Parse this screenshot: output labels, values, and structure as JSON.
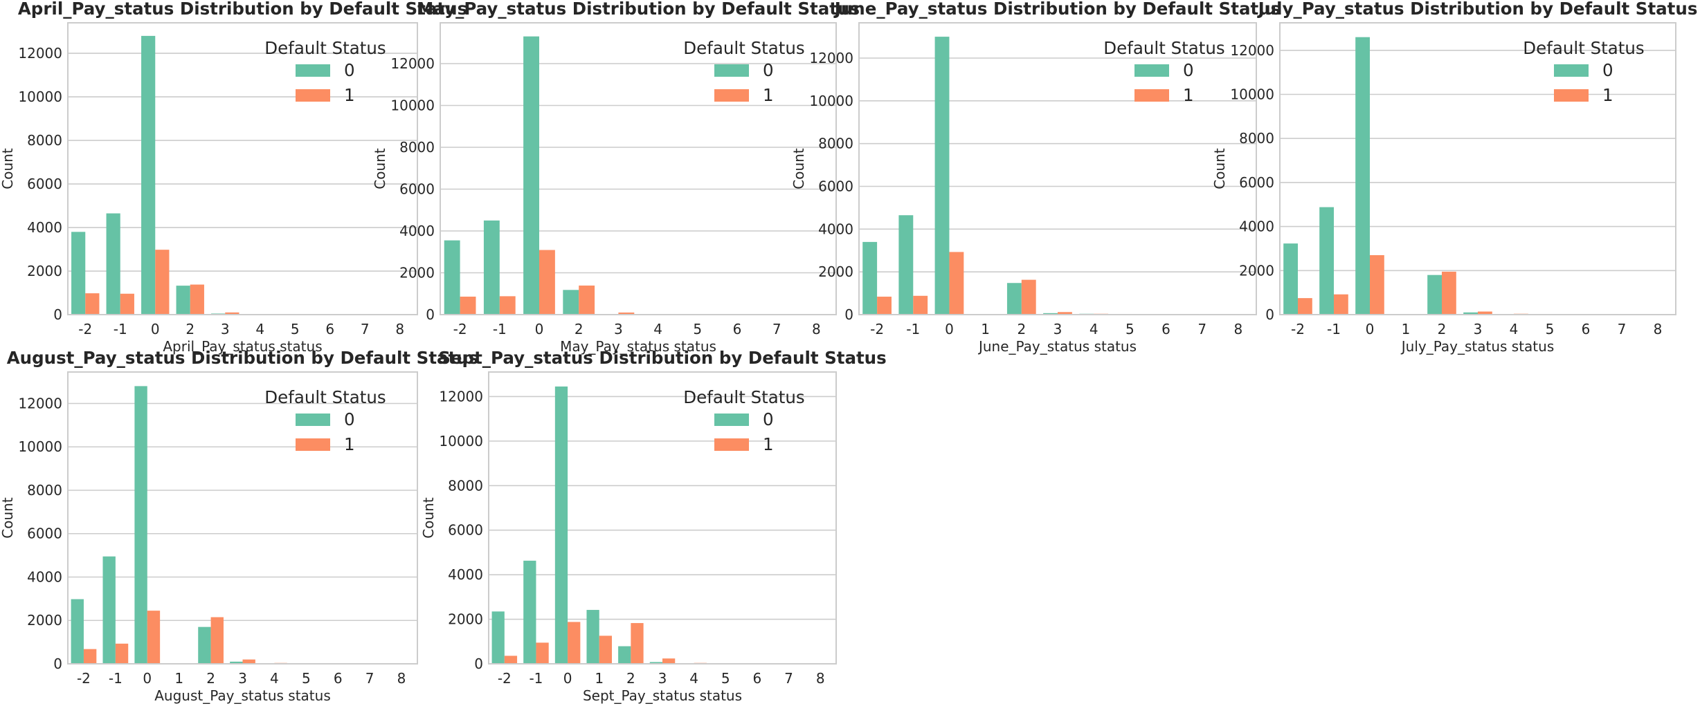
{
  "colors": {
    "series0": "#66c2a5",
    "series1": "#fc8d62",
    "grid": "#cccccc",
    "axis": "#cccccc",
    "text": "#262626"
  },
  "chart_data": [
    {
      "type": "bar",
      "title": "April_Pay_status Distribution by Default Status",
      "xlabel": "April_Pay_status status",
      "ylabel": "Count",
      "categories": [
        "-2",
        "-1",
        "0",
        "2",
        "3",
        "4",
        "5",
        "6",
        "7",
        "8"
      ],
      "series": [
        {
          "name": "0",
          "values": [
            3800,
            4650,
            12800,
            1330,
            50,
            30,
            10,
            5,
            1,
            1
          ]
        },
        {
          "name": "1",
          "values": [
            980,
            960,
            2980,
            1380,
            100,
            20,
            10,
            5,
            1,
            1
          ]
        }
      ],
      "ylim": [
        0,
        13400
      ],
      "yticks": [
        0,
        2000,
        4000,
        6000,
        8000,
        10000,
        12000
      ],
      "legend": {
        "title": "Default Status",
        "placement": "top-right"
      },
      "grid": "y"
    },
    {
      "type": "bar",
      "title": "May_Pay_status Distribution by Default Status",
      "xlabel": "May_Pay_status status",
      "ylabel": "Count",
      "categories": [
        "-2",
        "-1",
        "0",
        "2",
        "3",
        "4",
        "5",
        "6",
        "7",
        "8"
      ],
      "series": [
        {
          "name": "0",
          "values": [
            3550,
            4500,
            13300,
            1180,
            30,
            20,
            10,
            5,
            10,
            1
          ]
        },
        {
          "name": "1",
          "values": [
            860,
            880,
            3090,
            1390,
            100,
            15,
            10,
            5,
            10,
            1
          ]
        }
      ],
      "ylim": [
        0,
        13950
      ],
      "yticks": [
        0,
        2000,
        4000,
        6000,
        8000,
        10000,
        12000
      ],
      "legend": {
        "title": "Default Status",
        "placement": "top-right"
      },
      "grid": "y"
    },
    {
      "type": "bar",
      "title": "June_Pay_status Distribution by Default Status",
      "xlabel": "June_Pay_status status",
      "ylabel": "Count",
      "categories": [
        "-2",
        "-1",
        "0",
        "1",
        "2",
        "3",
        "4",
        "5",
        "6",
        "7",
        "8"
      ],
      "series": [
        {
          "name": "0",
          "values": [
            3400,
            4650,
            13000,
            2,
            1480,
            70,
            40,
            20,
            10,
            10,
            1
          ]
        },
        {
          "name": "1",
          "values": [
            840,
            880,
            2930,
            2,
            1630,
            120,
            40,
            15,
            10,
            10,
            1
          ]
        }
      ],
      "ylim": [
        0,
        13650
      ],
      "yticks": [
        0,
        2000,
        4000,
        6000,
        8000,
        10000,
        12000
      ],
      "legend": {
        "title": "Default Status",
        "placement": "top-right"
      },
      "grid": "y"
    },
    {
      "type": "bar",
      "title": "July_Pay_status Distribution by Default Status",
      "xlabel": "July_Pay_status status",
      "ylabel": "Count",
      "categories": [
        "-2",
        "-1",
        "0",
        "1",
        "2",
        "3",
        "4",
        "5",
        "6",
        "7",
        "8"
      ],
      "series": [
        {
          "name": "0",
          "values": [
            3230,
            4880,
            12600,
            1,
            1800,
            100,
            30,
            15,
            10,
            10,
            1
          ]
        },
        {
          "name": "1",
          "values": [
            750,
            920,
            2700,
            1,
            1950,
            140,
            40,
            15,
            10,
            10,
            1
          ]
        }
      ],
      "ylim": [
        0,
        13250
      ],
      "yticks": [
        0,
        2000,
        4000,
        6000,
        8000,
        10000,
        12000
      ],
      "legend": {
        "title": "Default Status",
        "placement": "top-right"
      },
      "grid": "y"
    },
    {
      "type": "bar",
      "title": "August_Pay_status Distribution by Default Status",
      "xlabel": "August_Pay_status status",
      "ylabel": "Count",
      "categories": [
        "-2",
        "-1",
        "0",
        "1",
        "2",
        "3",
        "4",
        "5",
        "6",
        "7",
        "8"
      ],
      "series": [
        {
          "name": "0",
          "values": [
            2980,
            4950,
            12800,
            3,
            1700,
            100,
            30,
            15,
            10,
            10,
            1
          ]
        },
        {
          "name": "1",
          "values": [
            680,
            930,
            2450,
            3,
            2150,
            200,
            40,
            15,
            10,
            10,
            1
          ]
        }
      ],
      "ylim": [
        0,
        13450
      ],
      "yticks": [
        0,
        2000,
        4000,
        6000,
        8000,
        10000,
        12000
      ],
      "legend": {
        "title": "Default Status",
        "placement": "top-right"
      },
      "grid": "y"
    },
    {
      "type": "bar",
      "title": "Sept_Pay_status Distribution by Default Status",
      "xlabel": "Sept_Pay_status status",
      "ylabel": "Count",
      "categories": [
        "-2",
        "-1",
        "0",
        "1",
        "2",
        "3",
        "4",
        "5",
        "6",
        "7",
        "8"
      ],
      "series": [
        {
          "name": "0",
          "values": [
            2350,
            4630,
            12450,
            2420,
            790,
            80,
            30,
            15,
            10,
            10,
            1
          ]
        },
        {
          "name": "1",
          "values": [
            360,
            950,
            1880,
            1260,
            1830,
            240,
            40,
            15,
            10,
            10,
            1
          ]
        }
      ],
      "ylim": [
        0,
        13100
      ],
      "yticks": [
        0,
        2000,
        4000,
        6000,
        8000,
        10000,
        12000
      ],
      "legend": {
        "title": "Default Status",
        "placement": "top-right"
      },
      "grid": "y"
    }
  ]
}
